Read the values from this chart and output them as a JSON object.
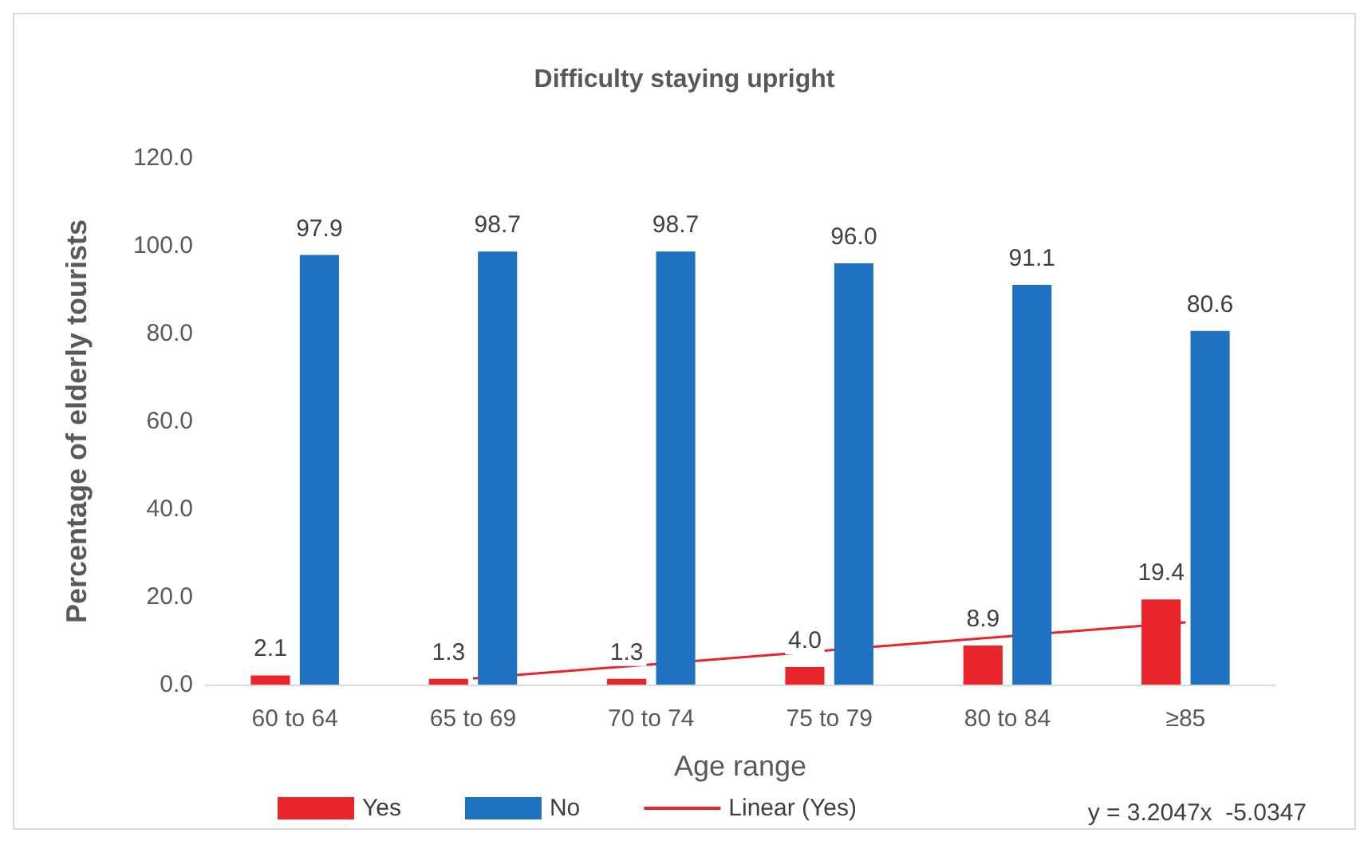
{
  "chart_data": {
    "type": "bar",
    "title": "Difficulty staying upright",
    "xlabel": "Age range",
    "ylabel": "Percentage of elderly tourists",
    "categories": [
      "60 to 64",
      "65 to 69",
      "70 to 74",
      "75 to 79",
      "80 to 84",
      "≥85"
    ],
    "series": [
      {
        "name": "Yes",
        "color": "#e8252a",
        "values": [
          2.1,
          1.3,
          1.3,
          4.0,
          8.9,
          19.4
        ],
        "value_labels": [
          "2.1",
          "1.3",
          "1.3",
          "4.0",
          "8.9",
          "19.4"
        ]
      },
      {
        "name": "No",
        "color": "#1f72c2",
        "values": [
          97.9,
          98.7,
          98.7,
          96.0,
          91.1,
          80.6
        ],
        "value_labels": [
          "97.9",
          "98.7",
          "98.7",
          "96.0",
          "91.1",
          "80.6"
        ]
      },
      {
        "name": "Linear (Yes)",
        "type": "line",
        "color": "#e8252a",
        "x": [
          "60 to 64",
          "65 to 69",
          "70 to 74",
          "75 to 79",
          "80 to 84",
          "≥85"
        ],
        "values": [
          null,
          1.4,
          4.6,
          7.8,
          11.0,
          14.2
        ]
      }
    ],
    "annotations": [
      "y = 3.2047x  -5.0347"
    ],
    "ylim": [
      0,
      120
    ],
    "yticks": [
      {
        "value": 0,
        "label": "0.0"
      },
      {
        "value": 20,
        "label": "20.0"
      },
      {
        "value": 40,
        "label": "40.0"
      },
      {
        "value": 60,
        "label": "60.0"
      },
      {
        "value": 80,
        "label": "80.0"
      },
      {
        "value": 100,
        "label": "100.0"
      },
      {
        "value": 120,
        "label": "120.0"
      }
    ],
    "grid": false,
    "legend": "bottom",
    "marker": "none"
  }
}
